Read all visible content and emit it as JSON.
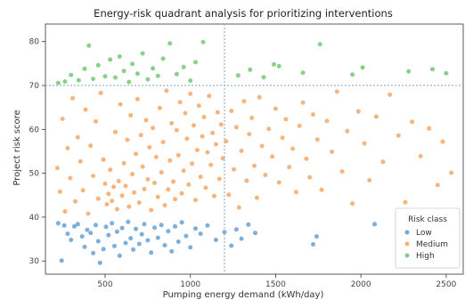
{
  "chart_data": {
    "type": "scatter",
    "title": "Energy-risk quadrant analysis for prioritizing interventions",
    "xlabel": "Pumping energy demand (kWh/day)",
    "ylabel": "Project risk score",
    "xlim": [
      150,
      2600
    ],
    "ylim": [
      27,
      84
    ],
    "xticks": [
      500,
      1000,
      1500,
      2000,
      2500
    ],
    "yticks": [
      30,
      40,
      50,
      60,
      70,
      80
    ],
    "grid": false,
    "thresholds": {
      "x": 1200,
      "y": 70
    },
    "legend": {
      "title": "Risk class",
      "position": "lower-right"
    },
    "colors": {
      "Low": "#5b9bd5",
      "Medium": "#f5a25d",
      "High": "#6cc56c",
      "threshold": "#8fb9dc"
    },
    "series": [
      {
        "name": "Low",
        "points": [
          [
            225,
            38.6
          ],
          [
            245,
            30.1
          ],
          [
            260,
            38.1
          ],
          [
            280,
            36.2
          ],
          [
            300,
            34.8
          ],
          [
            320,
            37.9
          ],
          [
            340,
            38.4
          ],
          [
            365,
            35.6
          ],
          [
            380,
            33.2
          ],
          [
            395,
            37.1
          ],
          [
            415,
            36.4
          ],
          [
            430,
            31.8
          ],
          [
            445,
            38.2
          ],
          [
            460,
            34.5
          ],
          [
            470,
            29.6
          ],
          [
            490,
            32.7
          ],
          [
            505,
            37.8
          ],
          [
            520,
            35.9
          ],
          [
            540,
            38.6
          ],
          [
            555,
            33.4
          ],
          [
            570,
            36.7
          ],
          [
            585,
            31.2
          ],
          [
            600,
            37.5
          ],
          [
            620,
            34.1
          ],
          [
            635,
            38.9
          ],
          [
            650,
            35.2
          ],
          [
            665,
            32.6
          ],
          [
            680,
            37.3
          ],
          [
            700,
            33.9
          ],
          [
            715,
            36.1
          ],
          [
            730,
            38.4
          ],
          [
            750,
            34.7
          ],
          [
            770,
            31.9
          ],
          [
            790,
            37.6
          ],
          [
            810,
            35.3
          ],
          [
            830,
            38.2
          ],
          [
            850,
            33.6
          ],
          [
            870,
            36.8
          ],
          [
            890,
            32.2
          ],
          [
            910,
            37.9
          ],
          [
            930,
            34.4
          ],
          [
            950,
            38.8
          ],
          [
            975,
            35.7
          ],
          [
            1000,
            33.1
          ],
          [
            1030,
            37.4
          ],
          [
            1060,
            36.2
          ],
          [
            1100,
            38.1
          ],
          [
            1150,
            34.8
          ],
          [
            1200,
            36.6
          ],
          [
            1240,
            33.5
          ],
          [
            1270,
            37.2
          ],
          [
            1300,
            35.1
          ],
          [
            1340,
            38.3
          ],
          [
            1380,
            36.4
          ],
          [
            1720,
            33.8
          ],
          [
            1740,
            35.6
          ],
          [
            2080,
            38.4
          ]
        ]
      },
      {
        "name": "Medium",
        "points": [
          [
            220,
            51.2
          ],
          [
            235,
            45.8
          ],
          [
            250,
            62.4
          ],
          [
            265,
            41.3
          ],
          [
            280,
            55.7
          ],
          [
            295,
            48.9
          ],
          [
            310,
            67.1
          ],
          [
            325,
            43.6
          ],
          [
            340,
            58.2
          ],
          [
            355,
            52.7
          ],
          [
            370,
            46.1
          ],
          [
            385,
            64.5
          ],
          [
            400,
            40.8
          ],
          [
            415,
            56.3
          ],
          [
            430,
            49.4
          ],
          [
            445,
            61.8
          ],
          [
            460,
            44.2
          ],
          [
            475,
            68.3
          ],
          [
            490,
            53.1
          ],
          [
            500,
            47.6
          ],
          [
            510,
            42.9
          ],
          [
            520,
            45.3
          ],
          [
            530,
            50.8
          ],
          [
            540,
            43.7
          ],
          [
            550,
            46.9
          ],
          [
            560,
            59.4
          ],
          [
            570,
            41.8
          ],
          [
            580,
            48.2
          ],
          [
            590,
            65.7
          ],
          [
            600,
            44.9
          ],
          [
            610,
            52.3
          ],
          [
            620,
            47.1
          ],
          [
            630,
            57.6
          ],
          [
            640,
            42.4
          ],
          [
            650,
            63.2
          ],
          [
            660,
            49.8
          ],
          [
            670,
            45.6
          ],
          [
            680,
            54.4
          ],
          [
            690,
            66.9
          ],
          [
            700,
            43.3
          ],
          [
            710,
            58.7
          ],
          [
            720,
            51.5
          ],
          [
            730,
            46.4
          ],
          [
            740,
            62.1
          ],
          [
            750,
            48.6
          ],
          [
            760,
            55.9
          ],
          [
            770,
            41.6
          ],
          [
            780,
            60.3
          ],
          [
            790,
            47.8
          ],
          [
            800,
            53.7
          ],
          [
            810,
            44.6
          ],
          [
            820,
            64.9
          ],
          [
            830,
            50.2
          ],
          [
            840,
            57.1
          ],
          [
            850,
            42.7
          ],
          [
            860,
            68.8
          ],
          [
            870,
            46.3
          ],
          [
            880,
            52.9
          ],
          [
            890,
            61.4
          ],
          [
            900,
            48.1
          ],
          [
            910,
            44.1
          ],
          [
            920,
            59.8
          ],
          [
            930,
            54.1
          ],
          [
            940,
            66.2
          ],
          [
            950,
            45.4
          ],
          [
            960,
            50.6
          ],
          [
            970,
            63.7
          ],
          [
            980,
            57.9
          ],
          [
            990,
            47.4
          ],
          [
            1000,
            68.1
          ],
          [
            1010,
            52.2
          ],
          [
            1020,
            60.9
          ],
          [
            1030,
            43.9
          ],
          [
            1040,
            55.3
          ],
          [
            1050,
            65.4
          ],
          [
            1060,
            49.2
          ],
          [
            1070,
            58.4
          ],
          [
            1080,
            62.8
          ],
          [
            1090,
            46.7
          ],
          [
            1100,
            54.8
          ],
          [
            1110,
            67.6
          ],
          [
            1120,
            51.9
          ],
          [
            1130,
            59.2
          ],
          [
            1140,
            44.8
          ],
          [
            1150,
            56.6
          ],
          [
            1160,
            63.9
          ],
          [
            1170,
            48.7
          ],
          [
            1180,
            61.1
          ],
          [
            1190,
            53.4
          ],
          [
            1210,
            57.3
          ],
          [
            1225,
            45.1
          ],
          [
            1240,
            64.2
          ],
          [
            1255,
            50.9
          ],
          [
            1270,
            60.5
          ],
          [
            1285,
            42.2
          ],
          [
            1300,
            55.1
          ],
          [
            1315,
            66.4
          ],
          [
            1330,
            48.3
          ],
          [
            1345,
            58.9
          ],
          [
            1360,
            62.6
          ],
          [
            1375,
            51.7
          ],
          [
            1390,
            44.4
          ],
          [
            1405,
            67.3
          ],
          [
            1420,
            56.2
          ],
          [
            1440,
            49.6
          ],
          [
            1460,
            60.1
          ],
          [
            1480,
            53.8
          ],
          [
            1500,
            64.7
          ],
          [
            1520,
            47.9
          ],
          [
            1540,
            58.1
          ],
          [
            1560,
            62.3
          ],
          [
            1580,
            51.4
          ],
          [
            1600,
            55.6
          ],
          [
            1620,
            45.7
          ],
          [
            1640,
            60.8
          ],
          [
            1660,
            66.1
          ],
          [
            1680,
            53.3
          ],
          [
            1700,
            49.1
          ],
          [
            1720,
            63.4
          ],
          [
            1745,
            57.7
          ],
          [
            1770,
            46.2
          ],
          [
            1800,
            61.9
          ],
          [
            1830,
            54.9
          ],
          [
            1860,
            68.6
          ],
          [
            1890,
            50.4
          ],
          [
            1920,
            59.6
          ],
          [
            1950,
            43.1
          ],
          [
            1985,
            64.1
          ],
          [
            2020,
            56.8
          ],
          [
            2050,
            48.4
          ],
          [
            2090,
            62.9
          ],
          [
            2130,
            52.6
          ],
          [
            2170,
            67.9
          ],
          [
            2220,
            58.6
          ],
          [
            2260,
            43.4
          ],
          [
            2300,
            61.7
          ],
          [
            2350,
            53.9
          ],
          [
            2400,
            60.2
          ],
          [
            2450,
            47.3
          ],
          [
            2480,
            57.2
          ],
          [
            2530,
            50.1
          ]
        ]
      },
      {
        "name": "High",
        "points": [
          [
            225,
            70.6
          ],
          [
            265,
            70.9
          ],
          [
            300,
            72.4
          ],
          [
            345,
            71.2
          ],
          [
            380,
            73.8
          ],
          [
            405,
            79.1
          ],
          [
            430,
            71.5
          ],
          [
            460,
            74.6
          ],
          [
            500,
            72.1
          ],
          [
            530,
            75.9
          ],
          [
            560,
            71.8
          ],
          [
            585,
            76.6
          ],
          [
            610,
            73.3
          ],
          [
            640,
            70.8
          ],
          [
            660,
            74.9
          ],
          [
            690,
            72.7
          ],
          [
            720,
            77.3
          ],
          [
            750,
            71.4
          ],
          [
            780,
            73.9
          ],
          [
            810,
            72.2
          ],
          [
            840,
            76.1
          ],
          [
            880,
            79.6
          ],
          [
            920,
            72.6
          ],
          [
            960,
            74.2
          ],
          [
            1000,
            71.1
          ],
          [
            1030,
            75.3
          ],
          [
            1075,
            79.9
          ],
          [
            1280,
            72.3
          ],
          [
            1350,
            73.6
          ],
          [
            1430,
            71.9
          ],
          [
            1490,
            74.8
          ],
          [
            1520,
            74.4
          ],
          [
            1660,
            72.9
          ],
          [
            1760,
            79.4
          ],
          [
            1950,
            72.5
          ],
          [
            2010,
            74.1
          ],
          [
            2280,
            73.2
          ],
          [
            2420,
            73.7
          ],
          [
            2500,
            72.8
          ]
        ]
      }
    ]
  }
}
